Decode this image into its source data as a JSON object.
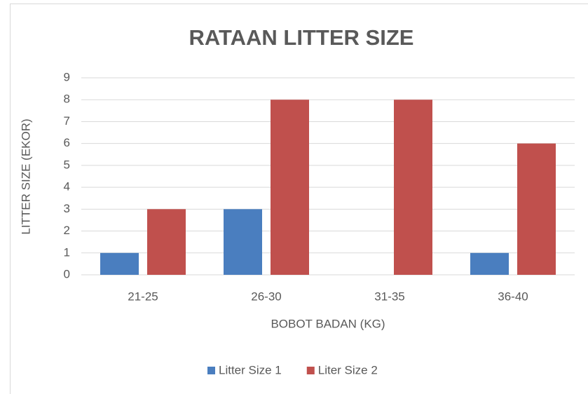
{
  "chart_data": {
    "type": "bar",
    "title": "RATAAN LITTER SIZE",
    "x_label": "BOBOT BADAN (KG)",
    "y_label": "LITTER SIZE (EKOR)",
    "categories": [
      "21-25",
      "26-30",
      "31-35",
      "36-40"
    ],
    "series": [
      {
        "name": "Litter Size 1",
        "color": "#4a7ebf",
        "values": [
          1,
          3,
          0,
          1
        ]
      },
      {
        "name": "Liter Size 2",
        "color": "#c0504d",
        "values": [
          3,
          8,
          8,
          6
        ]
      }
    ],
    "ylim": [
      0,
      9
    ],
    "yticks": [
      0,
      1,
      2,
      3,
      4,
      5,
      6,
      7,
      8,
      9
    ],
    "grid": true,
    "legend": "bottom"
  }
}
